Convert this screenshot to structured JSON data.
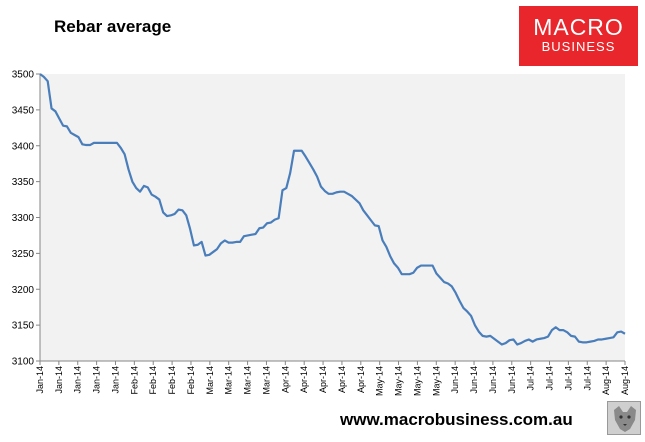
{
  "chart_data": {
    "type": "line",
    "title": "Rebar average",
    "ylim": [
      3100,
      3500
    ],
    "y_ticks": [
      3100,
      3150,
      3200,
      3250,
      3300,
      3350,
      3400,
      3450,
      3500
    ],
    "x_tick_labels": [
      "Jan-14",
      "Jan-14",
      "Jan-14",
      "Jan-14",
      "Jan-14",
      "Feb-14",
      "Feb-14",
      "Feb-14",
      "Feb-14",
      "Mar-14",
      "Mar-14",
      "Mar-14",
      "Mar-14",
      "Apr-14",
      "Apr-14",
      "Apr-14",
      "Apr-14",
      "Apr-14",
      "May-14",
      "May-14",
      "May-14",
      "May-14",
      "Jun-14",
      "Jun-14",
      "Jun-14",
      "Jun-14",
      "Jul-14",
      "Jul-14",
      "Jul-14",
      "Jul-14",
      "Aug-14",
      "Aug-14"
    ],
    "grid": false,
    "series": [
      {
        "color": "#4a7ebb",
        "values": [
          3500,
          3496,
          3490,
          3452,
          3448,
          3438,
          3428,
          3427,
          3418,
          3415,
          3412,
          3402,
          3401,
          3401,
          3404,
          3404,
          3404,
          3404,
          3404,
          3404,
          3404,
          3397,
          3388,
          3367,
          3350,
          3341,
          3336,
          3344,
          3342,
          3332,
          3329,
          3325,
          3307,
          3302,
          3303,
          3305,
          3311,
          3310,
          3303,
          3284,
          3261,
          3262,
          3266,
          3247,
          3248,
          3252,
          3256,
          3264,
          3268,
          3265,
          3265,
          3266,
          3266,
          3274,
          3275,
          3276,
          3277,
          3285,
          3286,
          3292,
          3293,
          3297,
          3299,
          3338,
          3341,
          3362,
          3393,
          3393,
          3393,
          3385,
          3376,
          3367,
          3357,
          3343,
          3337,
          3333,
          3333,
          3335,
          3336,
          3336,
          3333,
          3330,
          3325,
          3320,
          3310,
          3303,
          3296,
          3289,
          3288,
          3268,
          3259,
          3246,
          3236,
          3230,
          3221,
          3221,
          3221,
          3223,
          3230,
          3233,
          3233,
          3233,
          3233,
          3222,
          3216,
          3210,
          3208,
          3204,
          3195,
          3184,
          3174,
          3169,
          3163,
          3150,
          3141,
          3135,
          3134,
          3135,
          3131,
          3127,
          3123,
          3125,
          3129,
          3130,
          3123,
          3125,
          3128,
          3130,
          3127,
          3130,
          3131,
          3132,
          3134,
          3143,
          3147,
          3143,
          3143,
          3140,
          3135,
          3134,
          3127,
          3126,
          3126,
          3127,
          3128,
          3130,
          3130,
          3131,
          3132,
          3133,
          3140,
          3141,
          3138
        ]
      }
    ]
  },
  "branding": {
    "logo_line1": "MACRO",
    "logo_line2": "BUSINESS",
    "logo_color": "#e8262b",
    "website": "www.macrobusiness.com.au"
  }
}
